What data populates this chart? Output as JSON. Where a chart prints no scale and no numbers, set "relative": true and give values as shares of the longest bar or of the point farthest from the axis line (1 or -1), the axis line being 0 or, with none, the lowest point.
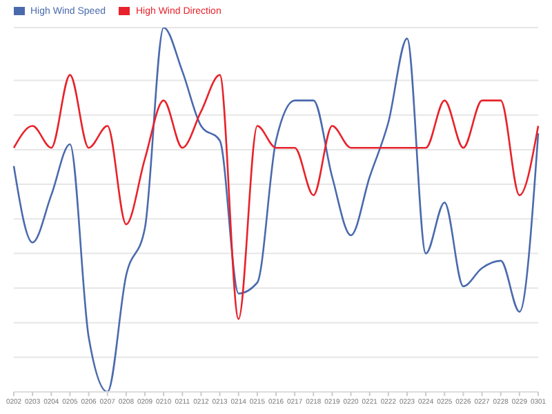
{
  "chart_data": {
    "type": "line",
    "relative": true,
    "grid": "y",
    "legend": "top left",
    "marker": "none",
    "line_style": "solid",
    "categories": [
      "0202",
      "0203",
      "0204",
      "0205",
      "0206",
      "0207",
      "0208",
      "0209",
      "0210",
      "0211",
      "0212",
      "0213",
      "0214",
      "0215",
      "0216",
      "0217",
      "0218",
      "0219",
      "0220",
      "0221",
      "0222",
      "0223",
      "0224",
      "0225",
      "0226",
      "0227",
      "0228",
      "0229",
      "0301"
    ],
    "series": [
      {
        "name": "High Wind Speed",
        "color": "#4a6aad",
        "values": [
          0.62,
          0.41,
          0.54,
          0.68,
          0.15,
          0,
          0.32,
          0.45,
          1,
          0.88,
          0.73,
          0.69,
          0.27,
          0.3,
          0.69,
          0.8,
          0.8,
          0.59,
          0.43,
          0.59,
          0.74,
          0.97,
          0.38,
          0.52,
          0.29,
          0.34,
          0.36,
          0.22,
          0.71
        ]
      },
      {
        "name": "High Wind Direction",
        "color": "#e8222a",
        "values": [
          0.67,
          0.73,
          0.67,
          0.87,
          0.67,
          0.73,
          0.46,
          0.64,
          0.8,
          0.67,
          0.77,
          0.87,
          0.2,
          0.73,
          0.67,
          0.67,
          0.54,
          0.73,
          0.67,
          0.67,
          0.67,
          0.67,
          0.67,
          0.8,
          0.67,
          0.8,
          0.8,
          0.54,
          0.73
        ]
      }
    ]
  }
}
